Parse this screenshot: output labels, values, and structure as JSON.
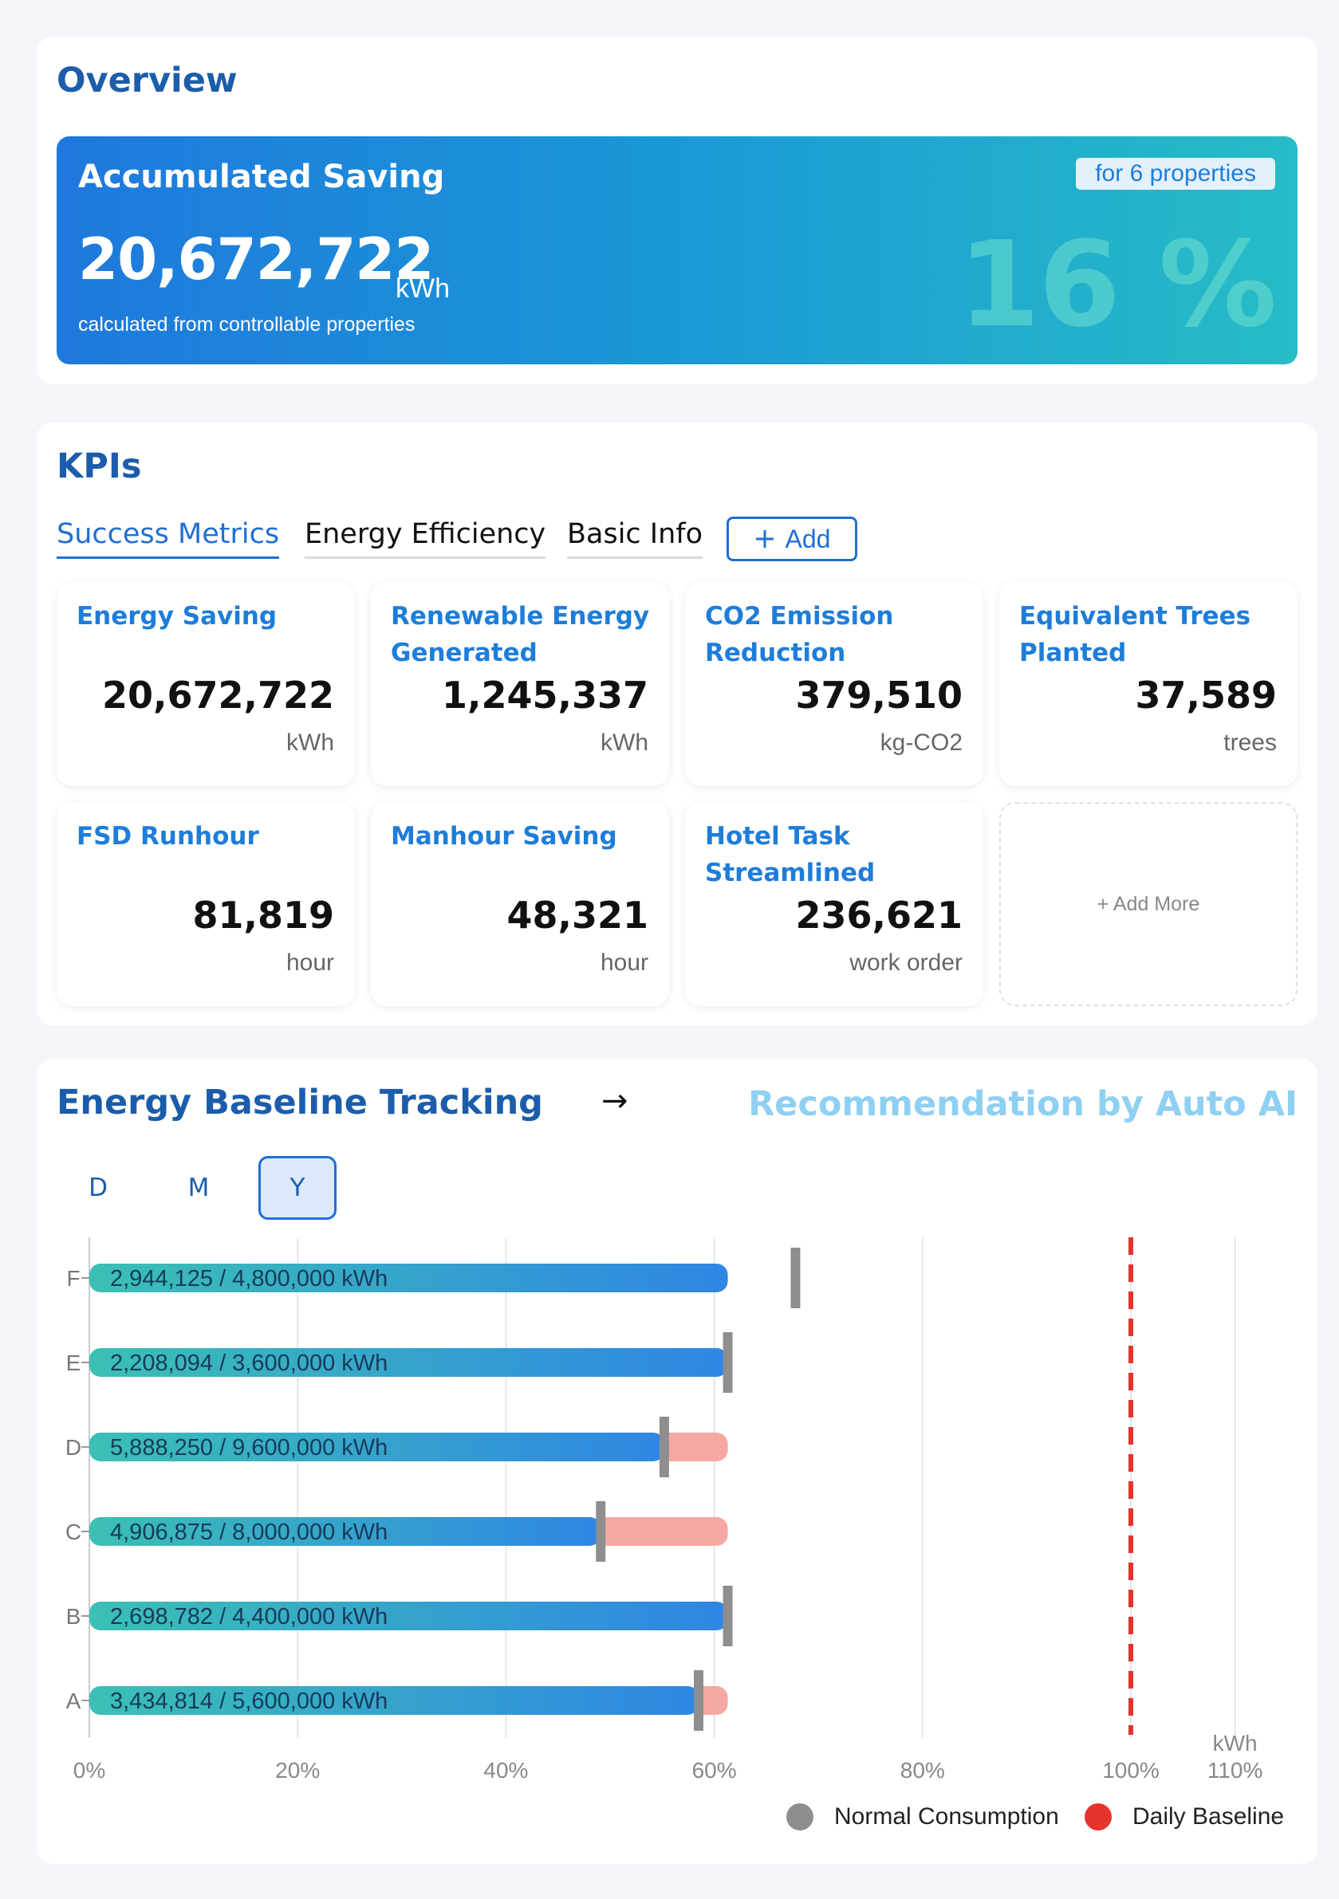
{
  "overview": {
    "title": "Overview",
    "banner": {
      "title": "Accumulated Saving",
      "value": "20,672,722",
      "unit": "kWh",
      "subtitle": "calculated from controllable properties",
      "badge": "for 6 properties",
      "percent": "16 %"
    }
  },
  "kpis": {
    "title": "KPIs",
    "tabs": [
      {
        "label": "Success Metrics",
        "active": true
      },
      {
        "label": "Energy Efficiency",
        "active": false
      },
      {
        "label": "Basic Info",
        "active": false
      }
    ],
    "add_label": "Add",
    "add_more_label": "+ Add More",
    "cards": [
      {
        "label": "Energy Saving",
        "value": "20,672,722",
        "unit": "kWh"
      },
      {
        "label": "Renewable Energy Generated",
        "value": "1,245,337",
        "unit": "kWh"
      },
      {
        "label": "CO2 Emission Reduction",
        "value": "379,510",
        "unit": "kg-CO2"
      },
      {
        "label": "Equivalent Trees Planted",
        "value": "37,589",
        "unit": "trees"
      },
      {
        "label": "FSD Runhour",
        "value": "81,819",
        "unit": "hour"
      },
      {
        "label": "Manhour Saving",
        "value": "48,321",
        "unit": "hour"
      },
      {
        "label": "Hotel Task Streamlined",
        "value": "236,621",
        "unit": "work order"
      }
    ]
  },
  "baseline": {
    "title": "Energy Baseline Tracking",
    "arrow": "→",
    "recommendation_link": "Recommendation by Auto AI",
    "periods": [
      {
        "label": "D",
        "active": false
      },
      {
        "label": "M",
        "active": false
      },
      {
        "label": "Y",
        "active": true
      }
    ],
    "legend": [
      {
        "label": "Normal Consumption",
        "color": "#8e8e8e"
      },
      {
        "label": "Daily Baseline",
        "color": "#e8332d"
      }
    ]
  },
  "chart_data": {
    "type": "bar",
    "orientation": "horizontal",
    "categories": [
      "F",
      "E",
      "D",
      "C",
      "B",
      "A"
    ],
    "bar_labels": [
      "2,944,125 / 4,800,000 kWh",
      "2,208,094 / 3,600,000 kWh",
      "5,888,250 / 9,600,000 kWh",
      "4,906,875 / 8,000,000 kWh",
      "2,698,782 / 4,400,000 kWh",
      "3,434,814 / 5,600,000 kWh"
    ],
    "series": [
      {
        "name": "Normal Consumption",
        "values": [
          61.3,
          61.3,
          55.2,
          49.1,
          61.3,
          58.5
        ]
      }
    ],
    "bar_totals": [
      61.3,
      61.3,
      61.3,
      61.3,
      61.3,
      61.3
    ],
    "markers": [
      67.8,
      61.3,
      55.2,
      49.1,
      61.3,
      58.5
    ],
    "reference_line": 100,
    "x_ticks": [
      0,
      20,
      40,
      60,
      80,
      100,
      110
    ],
    "x_tick_labels": [
      "0%",
      "20%",
      "40%",
      "60%",
      "80%",
      "100%",
      "110%"
    ],
    "xlim": [
      0,
      110
    ],
    "unit_label": "kWh",
    "colors": {
      "bar_start": "#3bc0b4",
      "bar_end": "#2f86e4",
      "remainder": "#f6a8a3",
      "marker": "#8e8e8e",
      "baseline": "#e8332d"
    },
    "grid": true
  }
}
